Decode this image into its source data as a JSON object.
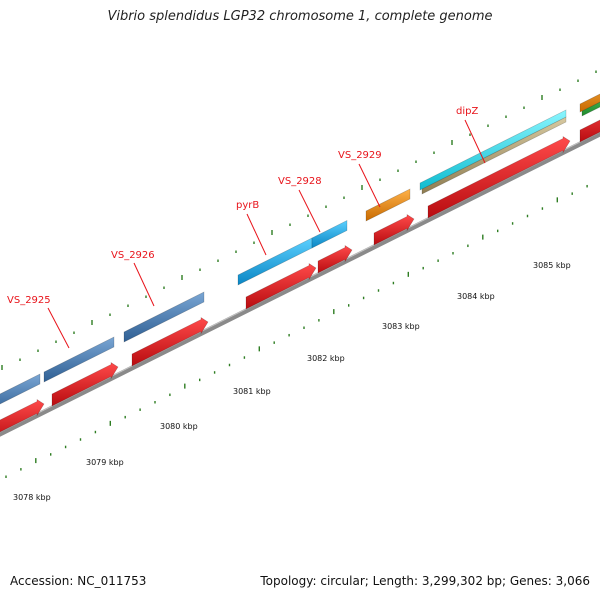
{
  "header": {
    "title": "Vibrio splendidus LGP32 chromosome 1, complete genome"
  },
  "footer": {
    "accession": "Accession: NC_011753",
    "topology": "Topology: circular; Length: 3,299,302 bp; Genes: 3,066"
  },
  "genes": [
    {
      "label": "VS_2925"
    },
    {
      "label": "VS_2926"
    },
    {
      "label": "pyrB"
    },
    {
      "label": "VS_2928"
    },
    {
      "label": "VS_2929"
    },
    {
      "label": "dipZ"
    }
  ],
  "scale": {
    "kbp_labels": [
      "3078 kbp",
      "3079 kbp",
      "3080 kbp",
      "3081 kbp",
      "3082 kbp",
      "3083 kbp",
      "3084 kbp",
      "3085 kbp"
    ]
  },
  "colors": {
    "cds": "#e8141b",
    "blue_feature": "#4a7db4",
    "cyan_feature": "#1aa9ea",
    "orange_feature": "#f08c12",
    "bright_cyan_feature": "#16e0f0",
    "tan_feature": "#b9a77a",
    "green_feature": "#39b54a",
    "backbone": "#8a8a8a",
    "tick": "#2e7d22",
    "label": "#e8141b"
  }
}
